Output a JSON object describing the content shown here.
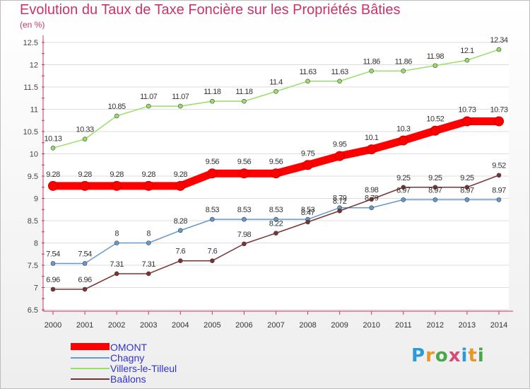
{
  "chart_data": {
    "type": "line",
    "title": "Evolution du Taux de Taxe Foncière sur les Propriétés Bâties",
    "unit_label": "(en %)",
    "x": [
      "2000",
      "2001",
      "2002",
      "2003",
      "2004",
      "2005",
      "2006",
      "2007",
      "2008",
      "2009",
      "2010",
      "2011",
      "2012",
      "2013",
      "2014"
    ],
    "ylim": [
      6.5,
      12.5
    ],
    "yticks": [
      "6.5",
      "7",
      "7.5",
      "8",
      "8.5",
      "9",
      "9.5",
      "10",
      "10.5",
      "11",
      "11.5",
      "12",
      "12.5"
    ],
    "series": [
      {
        "name": "OMONT",
        "color": "#ff0000",
        "values": [
          9.28,
          9.28,
          9.28,
          9.28,
          9.28,
          9.56,
          9.56,
          9.56,
          9.75,
          9.95,
          10.1,
          10.3,
          10.52,
          10.73,
          10.73
        ],
        "labels": [
          "9.28",
          "9.28",
          "9.28",
          "9.28",
          "9.28",
          "9.56",
          "9.56",
          "9.56",
          "9.75",
          "9.95",
          "10.1",
          "10.3",
          "10.52",
          "10.73",
          "10.73"
        ]
      },
      {
        "name": "Chagny",
        "color": "#6699cc",
        "values": [
          7.54,
          7.54,
          8,
          8,
          8.28,
          8.53,
          8.53,
          8.53,
          8.53,
          8.79,
          8.79,
          8.97,
          8.97,
          8.97,
          8.97
        ],
        "labels": [
          "7.54",
          "7.54",
          "8",
          "8",
          "8.28",
          "8.53",
          "8.53",
          "8.53",
          "8.53",
          "8.79",
          "8.79",
          "8.97",
          "8.97",
          "8.97",
          "8.97"
        ]
      },
      {
        "name": "Villers-le-Tilleul",
        "color": "#99dd66",
        "values": [
          10.13,
          10.33,
          10.85,
          11.07,
          11.07,
          11.18,
          11.18,
          11.4,
          11.63,
          11.63,
          11.86,
          11.86,
          11.98,
          12.1,
          12.34
        ],
        "labels": [
          "10.13",
          "10.33",
          "10.85",
          "11.07",
          "11.07",
          "11.18",
          "11.18",
          "11.4",
          "11.63",
          "11.63",
          "11.86",
          "11.86",
          "11.98",
          "12.1",
          "12.34"
        ]
      },
      {
        "name": "Baâlons",
        "color": "#7a3333",
        "values": [
          6.96,
          6.96,
          7.31,
          7.31,
          7.6,
          7.6,
          7.98,
          8.22,
          8.47,
          8.72,
          8.98,
          9.25,
          9.25,
          9.25,
          9.52
        ],
        "labels": [
          "6.96",
          "6.96",
          "7.31",
          "7.31",
          "7.6",
          "7.6",
          "7.98",
          "8.22",
          "8.47",
          "8.72",
          "8.98",
          "9.25",
          "9.25",
          "9.25",
          "9.52"
        ]
      }
    ]
  },
  "legend": {
    "items": [
      "OMONT",
      "Chagny",
      "Villers-le-Tilleul",
      "Baâlons"
    ]
  },
  "logo": {
    "letters": [
      "P",
      "r",
      "o",
      "x",
      "i",
      "t",
      "i"
    ],
    "colors": [
      "#2a9bd8",
      "#e8962a",
      "#4aa64a",
      "#d84a7a"
    ]
  }
}
